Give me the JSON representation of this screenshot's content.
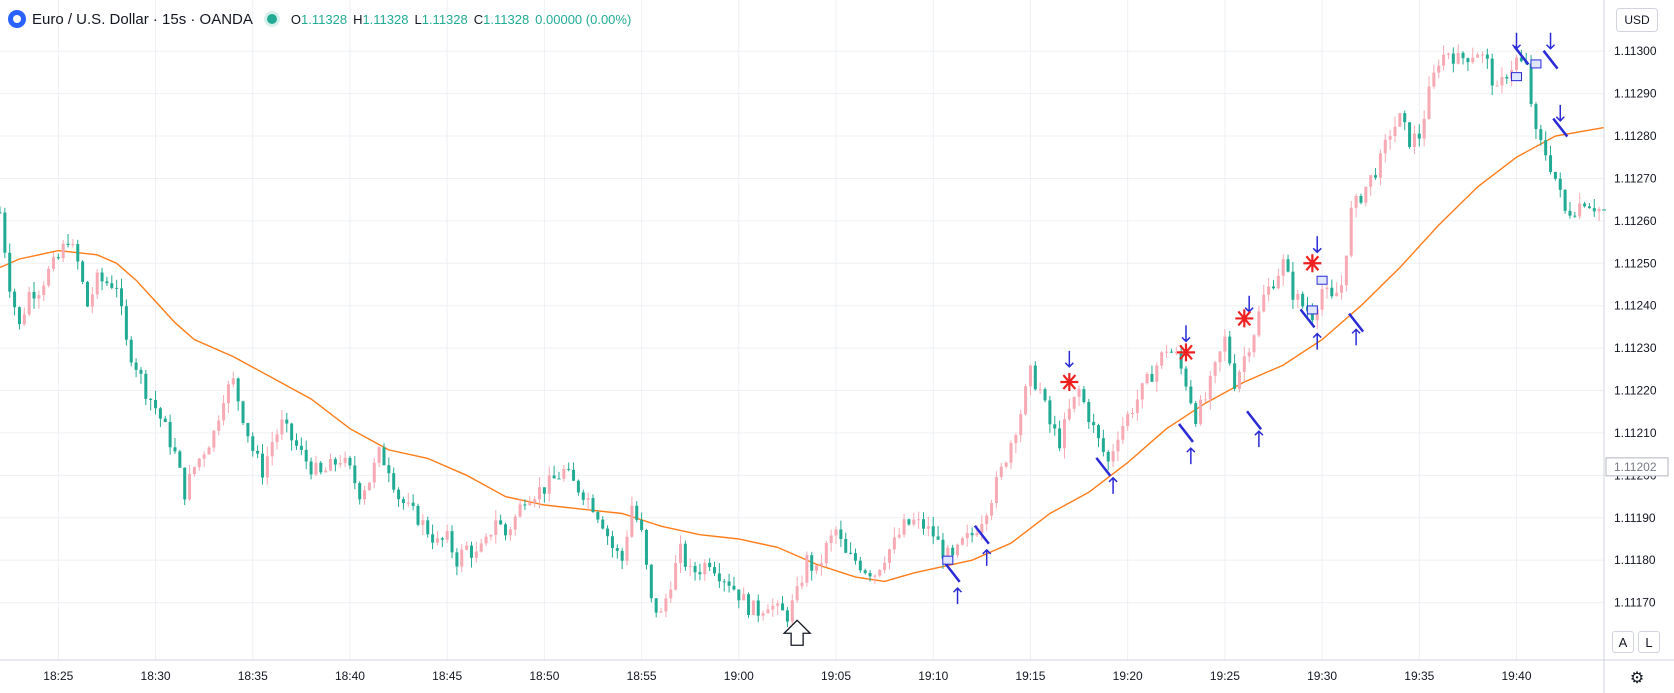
{
  "header": {
    "symbol_title": "Euro / U.S. Dollar · 15s · OANDA",
    "ohlc": [
      {
        "k": "O",
        "v": "1.11328"
      },
      {
        "k": "H",
        "v": "1.11328"
      },
      {
        "k": "L",
        "v": "1.11328"
      },
      {
        "k": "C",
        "v": "1.11328"
      },
      {
        "k": "",
        "v": "0.00000 (0.00%)"
      }
    ]
  },
  "currency_button": "USD",
  "scale_buttons": {
    "auto": "A",
    "log": "L"
  },
  "price_label": "1.11202",
  "colors": {
    "up": "#f7a9b4",
    "down": "#22ab94",
    "ma": "#ff7c18",
    "marker_blue": "#2a2ad6",
    "marker_red": "#ef2020"
  },
  "chart_data": {
    "type": "candlestick",
    "ylim": [
      1.1116,
      1.11305
    ],
    "y_ticks": [
      1.1117,
      1.1118,
      1.1119,
      1.112,
      1.1121,
      1.1122,
      1.1123,
      1.1124,
      1.1125,
      1.1126,
      1.1127,
      1.1128,
      1.1129,
      1.113
    ],
    "y_tick_labels": [
      "1.11170",
      "1.11180",
      "1.11190",
      "1.11200",
      "1.11210",
      "1.11220",
      "1.11230",
      "1.11240",
      "1.11250",
      "1.11260",
      "1.11270",
      "1.11280",
      "1.11290",
      "1.11300"
    ],
    "xlim": [
      "18:22:00",
      "19:44:30"
    ],
    "x_ticks": [
      "18:25:00",
      "18:30:00",
      "18:35:00",
      "18:40:00",
      "18:45:00",
      "18:50:00",
      "18:55:00",
      "19:00:00",
      "19:05:00",
      "19:10:00",
      "19:15:00",
      "19:20:00",
      "19:25:00",
      "19:30:00",
      "19:35:00",
      "19:40:00"
    ],
    "x_tick_labels": [
      "18:25",
      "18:30",
      "18:35",
      "18:40",
      "18:45",
      "18:50",
      "18:55",
      "19:00",
      "19:05",
      "19:10",
      "19:15",
      "19:20",
      "19:25",
      "19:30",
      "19:35",
      "19:40"
    ],
    "x_tick_bold": "19:00",
    "candle_interval": "15s",
    "close_path": [
      [
        "18:22:00",
        1.11262
      ],
      [
        "18:22:30",
        1.11245
      ],
      [
        "18:23:00",
        1.11235
      ],
      [
        "18:23:30",
        1.11243
      ],
      [
        "18:24:00",
        1.11244
      ],
      [
        "18:24:30",
        1.11248
      ],
      [
        "18:25:00",
        1.11251
      ],
      [
        "18:25:30",
        1.11256
      ],
      [
        "18:26:00",
        1.1125
      ],
      [
        "18:26:30",
        1.1124
      ],
      [
        "18:27:00",
        1.11246
      ],
      [
        "18:28:00",
        1.11245
      ],
      [
        "18:28:30",
        1.11231
      ],
      [
        "18:29:00",
        1.11226
      ],
      [
        "18:29:30",
        1.1122
      ],
      [
        "18:30:00",
        1.11216
      ],
      [
        "18:30:30",
        1.11211
      ],
      [
        "18:31:00",
        1.11205
      ],
      [
        "18:31:30",
        1.11196
      ],
      [
        "18:32:00",
        1.11202
      ],
      [
        "18:33:00",
        1.1121
      ],
      [
        "18:33:30",
        1.11219
      ],
      [
        "18:34:00",
        1.11222
      ],
      [
        "18:34:30",
        1.11214
      ],
      [
        "18:35:00",
        1.11206
      ],
      [
        "18:35:30",
        1.11201
      ],
      [
        "18:36:00",
        1.11208
      ],
      [
        "18:36:30",
        1.11212
      ],
      [
        "18:37:30",
        1.11205
      ],
      [
        "18:38:00",
        1.11202
      ],
      [
        "18:38:30",
        1.112
      ],
      [
        "18:39:00",
        1.11202
      ],
      [
        "18:39:30",
        1.11204
      ],
      [
        "18:40:00",
        1.11201
      ],
      [
        "18:40:30",
        1.11196
      ],
      [
        "18:41:00",
        1.11199
      ],
      [
        "18:41:30",
        1.11205
      ],
      [
        "18:42:00",
        1.11202
      ],
      [
        "18:42:30",
        1.11195
      ],
      [
        "18:43:00",
        1.11192
      ],
      [
        "18:43:30",
        1.1119
      ],
      [
        "18:44:00",
        1.11187
      ],
      [
        "18:44:30",
        1.11184
      ],
      [
        "18:45:00",
        1.11185
      ],
      [
        "18:45:30",
        1.1118
      ],
      [
        "18:46:00",
        1.11183
      ],
      [
        "18:46:30",
        1.11181
      ],
      [
        "18:47:00",
        1.11184
      ],
      [
        "18:47:30",
        1.1119
      ],
      [
        "18:48:00",
        1.11186
      ],
      [
        "18:48:30",
        1.1119
      ],
      [
        "18:49:00",
        1.11195
      ],
      [
        "18:50:00",
        1.11197
      ],
      [
        "18:50:30",
        1.11199
      ],
      [
        "18:51:00",
        1.11201
      ],
      [
        "18:51:30",
        1.11198
      ],
      [
        "18:52:00",
        1.11196
      ],
      [
        "18:52:30",
        1.11193
      ],
      [
        "18:53:00",
        1.11189
      ],
      [
        "18:53:30",
        1.11183
      ],
      [
        "18:54:00",
        1.1118
      ],
      [
        "18:54:30",
        1.11193
      ],
      [
        "18:55:00",
        1.11186
      ],
      [
        "18:55:30",
        1.1117
      ],
      [
        "18:56:00",
        1.11167
      ],
      [
        "18:56:30",
        1.11175
      ],
      [
        "18:57:00",
        1.11182
      ],
      [
        "18:57:30",
        1.11177
      ],
      [
        "18:58:00",
        1.11178
      ],
      [
        "18:58:30",
        1.1118
      ],
      [
        "18:59:00",
        1.11177
      ],
      [
        "18:59:30",
        1.11175
      ],
      [
        "19:00:00",
        1.11172
      ],
      [
        "19:00:30",
        1.11169
      ],
      [
        "19:01:00",
        1.11168
      ],
      [
        "19:01:30",
        1.1117
      ],
      [
        "19:02:00",
        1.11168
      ],
      [
        "19:02:30",
        1.11167
      ],
      [
        "19:03:00",
        1.11172
      ],
      [
        "19:03:30",
        1.1118
      ],
      [
        "19:04:00",
        1.11177
      ],
      [
        "19:04:30",
        1.11183
      ],
      [
        "19:05:00",
        1.11187
      ],
      [
        "19:05:30",
        1.11181
      ],
      [
        "19:06:00",
        1.1118
      ],
      [
        "19:06:30",
        1.11178
      ],
      [
        "19:07:00",
        1.11177
      ],
      [
        "19:07:30",
        1.11181
      ],
      [
        "19:08:00",
        1.11184
      ],
      [
        "19:08:30",
        1.11188
      ],
      [
        "19:09:00",
        1.11189
      ],
      [
        "19:09:30",
        1.11188
      ],
      [
        "19:10:00",
        1.11186
      ],
      [
        "19:10:30",
        1.11182
      ],
      [
        "19:11:00",
        1.1118
      ],
      [
        "19:11:30",
        1.11184
      ],
      [
        "19:12:00",
        1.11186
      ],
      [
        "19:12:30",
        1.1119
      ],
      [
        "19:13:00",
        1.11195
      ],
      [
        "19:13:30",
        1.11201
      ],
      [
        "19:14:00",
        1.11208
      ],
      [
        "19:14:30",
        1.11215
      ],
      [
        "19:15:00",
        1.11224
      ],
      [
        "19:15:30",
        1.1122
      ],
      [
        "19:16:00",
        1.11212
      ],
      [
        "19:16:30",
        1.11208
      ],
      [
        "19:17:00",
        1.11215
      ],
      [
        "19:17:30",
        1.1122
      ],
      [
        "19:18:00",
        1.11214
      ],
      [
        "19:18:30",
        1.11208
      ],
      [
        "19:19:00",
        1.11203
      ],
      [
        "19:19:30",
        1.1121
      ],
      [
        "19:20:00",
        1.11214
      ],
      [
        "19:20:30",
        1.11218
      ],
      [
        "19:21:00",
        1.11222
      ],
      [
        "19:21:30",
        1.11226
      ],
      [
        "19:22:00",
        1.1123
      ],
      [
        "19:22:30",
        1.11228
      ],
      [
        "19:23:00",
        1.11222
      ],
      [
        "19:23:30",
        1.11214
      ],
      [
        "19:24:00",
        1.11218
      ],
      [
        "19:24:30",
        1.11225
      ],
      [
        "19:25:00",
        1.11232
      ],
      [
        "19:25:30",
        1.11222
      ],
      [
        "19:26:00",
        1.11228
      ],
      [
        "19:26:30",
        1.11234
      ],
      [
        "19:27:00",
        1.11242
      ],
      [
        "19:27:30",
        1.11246
      ],
      [
        "19:28:00",
        1.1125
      ],
      [
        "19:28:30",
        1.11243
      ],
      [
        "19:29:00",
        1.1124
      ],
      [
        "19:29:30",
        1.11238
      ],
      [
        "19:30:00",
        1.11244
      ],
      [
        "19:30:30",
        1.11241
      ],
      [
        "19:31:00",
        1.11245
      ],
      [
        "19:31:30",
        1.11262
      ],
      [
        "19:32:00",
        1.11266
      ],
      [
        "19:32:30",
        1.1127
      ],
      [
        "19:33:00",
        1.11274
      ],
      [
        "19:33:30",
        1.11281
      ],
      [
        "19:34:00",
        1.11284
      ],
      [
        "19:34:30",
        1.11279
      ],
      [
        "19:35:00",
        1.1128
      ],
      [
        "19:35:30",
        1.1129
      ],
      [
        "19:36:00",
        1.11298
      ],
      [
        "19:36:30",
        1.113
      ],
      [
        "19:37:00",
        1.11298
      ],
      [
        "19:38:00",
        1.113
      ],
      [
        "19:38:30",
        1.11297
      ],
      [
        "19:39:00",
        1.1129
      ],
      [
        "19:39:30",
        1.11295
      ],
      [
        "19:40:00",
        1.11298
      ],
      [
        "19:40:30",
        1.11296
      ],
      [
        "19:41:00",
        1.1128
      ],
      [
        "19:41:30",
        1.11276
      ],
      [
        "19:42:00",
        1.1127
      ],
      [
        "19:42:30",
        1.11262
      ],
      [
        "19:43:00",
        1.11263
      ],
      [
        "19:43:30",
        1.11265
      ],
      [
        "19:44:30",
        1.11262
      ]
    ],
    "moving_average": [
      [
        "18:22:00",
        1.11249
      ],
      [
        "18:23:00",
        1.11251
      ],
      [
        "18:24:00",
        1.11252
      ],
      [
        "18:25:00",
        1.11253
      ],
      [
        "18:27:00",
        1.11252
      ],
      [
        "18:28:00",
        1.1125
      ],
      [
        "18:29:00",
        1.11246
      ],
      [
        "18:30:00",
        1.11241
      ],
      [
        "18:31:00",
        1.11236
      ],
      [
        "18:32:00",
        1.11232
      ],
      [
        "18:34:00",
        1.11228
      ],
      [
        "18:36:00",
        1.11223
      ],
      [
        "18:38:00",
        1.11218
      ],
      [
        "18:40:00",
        1.11211
      ],
      [
        "18:42:00",
        1.11206
      ],
      [
        "18:44:00",
        1.11204
      ],
      [
        "18:46:00",
        1.112
      ],
      [
        "18:48:00",
        1.11195
      ],
      [
        "18:50:00",
        1.11193
      ],
      [
        "18:52:00",
        1.11192
      ],
      [
        "18:54:00",
        1.11191
      ],
      [
        "18:56:00",
        1.11188
      ],
      [
        "18:58:00",
        1.11186
      ],
      [
        "19:00:00",
        1.11185
      ],
      [
        "19:02:00",
        1.11183
      ],
      [
        "19:04:00",
        1.11179
      ],
      [
        "19:06:00",
        1.11176
      ],
      [
        "19:07:30",
        1.11175
      ],
      [
        "19:09:00",
        1.11177
      ],
      [
        "19:10:00",
        1.11178
      ],
      [
        "19:11:00",
        1.11179
      ],
      [
        "19:12:00",
        1.1118
      ],
      [
        "19:14:00",
        1.11184
      ],
      [
        "19:16:00",
        1.11191
      ],
      [
        "19:18:00",
        1.11196
      ],
      [
        "19:20:00",
        1.11203
      ],
      [
        "19:22:00",
        1.11211
      ],
      [
        "19:24:00",
        1.11217
      ],
      [
        "19:26:00",
        1.11222
      ],
      [
        "19:28:00",
        1.11226
      ],
      [
        "19:30:00",
        1.11232
      ],
      [
        "19:32:00",
        1.1124
      ],
      [
        "19:34:00",
        1.11249
      ],
      [
        "19:36:00",
        1.11259
      ],
      [
        "19:38:00",
        1.11268
      ],
      [
        "19:40:00",
        1.11275
      ],
      [
        "19:42:00",
        1.1128
      ],
      [
        "19:44:30",
        1.11282
      ]
    ],
    "annotations": {
      "arrows_up": [
        [
          "19:11:15",
          1.11172
        ],
        [
          "19:12:45",
          1.11181
        ],
        [
          "19:19:15",
          1.11198
        ],
        [
          "19:23:15",
          1.11205
        ],
        [
          "19:26:45",
          1.11209
        ],
        [
          "19:29:45",
          1.11232
        ],
        [
          "19:31:45",
          1.11233
        ]
      ],
      "arrows_down": [
        [
          "19:17:00",
          1.11227
        ],
        [
          "19:23:00",
          1.11233
        ],
        [
          "19:26:15",
          1.1124
        ],
        [
          "19:29:45",
          1.11254
        ],
        [
          "19:40:00",
          1.11302
        ],
        [
          "19:41:45",
          1.11302
        ],
        [
          "19:42:15",
          1.11285
        ]
      ],
      "stars": [
        [
          "19:17:00",
          1.11222
        ],
        [
          "19:23:00",
          1.11229
        ],
        [
          "19:26:00",
          1.11237
        ],
        [
          "19:29:30",
          1.1125
        ]
      ],
      "signal_ticks": [
        [
          "19:11:00",
          1.11177
        ],
        [
          "19:12:30",
          1.11186
        ],
        [
          "19:18:45",
          1.11202
        ],
        [
          "19:23:00",
          1.1121
        ],
        [
          "19:26:30",
          1.11213
        ],
        [
          "19:29:15",
          1.11237
        ],
        [
          "19:31:45",
          1.11236
        ],
        [
          "19:40:15",
          1.11299
        ],
        [
          "19:41:45",
          1.11298
        ],
        [
          "19:42:15",
          1.11282
        ]
      ],
      "position_boxes": [
        [
          "19:10:45",
          1.1118
        ],
        [
          "19:29:30",
          1.11239
        ],
        [
          "19:30:00",
          1.11246
        ],
        [
          "19:40:00",
          1.11294
        ],
        [
          "19:41:00",
          1.11297
        ]
      ],
      "big_up_arrow": [
        "19:03:00",
        1.11163
      ]
    }
  }
}
